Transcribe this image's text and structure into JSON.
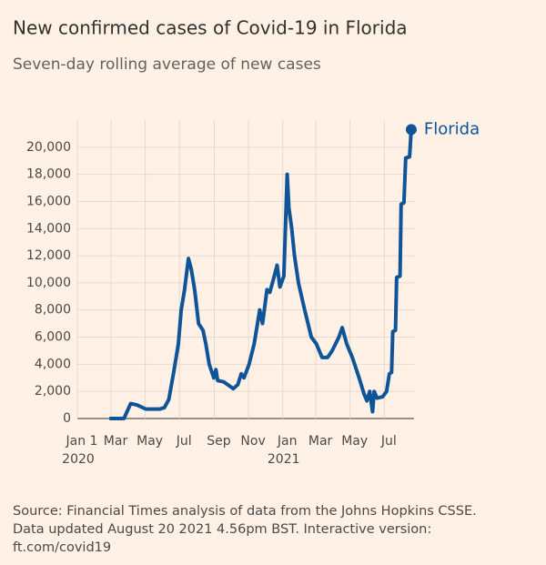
{
  "chart_data": {
    "type": "line",
    "title": "New confirmed cases of Covid-19 in Florida",
    "subtitle": "Seven-day rolling average of new cases",
    "source": [
      "Source: Financial Times analysis of data from the Johns Hopkins CSSE.",
      "Data updated August 20 2021 4.56pm BST. Interactive version:",
      "ft.com/covid19"
    ],
    "x": [
      57,
      83,
      95,
      106,
      122,
      147,
      155,
      163,
      172,
      180,
      185,
      191,
      198,
      203,
      209,
      216,
      224,
      229,
      235,
      243,
      247,
      250,
      261,
      278,
      286,
      292,
      297,
      306,
      315,
      325,
      330,
      338,
      343,
      351,
      356,
      361,
      368,
      374,
      377,
      382,
      387,
      394,
      405,
      417,
      426,
      436,
      446,
      454,
      466,
      472,
      480,
      490,
      502,
      511,
      516,
      521,
      526,
      529,
      534,
      544,
      551,
      556,
      560,
      562,
      567,
      569,
      575,
      577,
      582,
      585,
      592,
      595
    ],
    "series": [
      {
        "name": "Florida",
        "color": "#0f5499",
        "values": [
          0,
          0,
          1100,
          1000,
          700,
          700,
          800,
          1400,
          3500,
          5500,
          8000,
          9500,
          11800,
          11000,
          9500,
          7000,
          6500,
          5500,
          4000,
          3000,
          3600,
          2800,
          2700,
          2200,
          2500,
          3300,
          3000,
          4000,
          5500,
          8000,
          7000,
          9500,
          9300,
          10500,
          11300,
          9700,
          10500,
          18000,
          15500,
          14000,
          12000,
          10000,
          8000,
          6000,
          5500,
          4500,
          4500,
          5000,
          6000,
          6700,
          5500,
          4500,
          3000,
          1800,
          1300,
          2000,
          500,
          2000,
          1500,
          1600,
          2000,
          3300,
          3400,
          6400,
          6500,
          10400,
          10500,
          15800,
          15900,
          19200,
          19300,
          21300
        ]
      }
    ],
    "xlim": [
      0,
      600
    ],
    "xticks": [
      {
        "value": 0,
        "label": "Jan 1"
      },
      {
        "value": 60,
        "label": "Mar"
      },
      {
        "value": 121,
        "label": "May"
      },
      {
        "value": 182,
        "label": "Jul"
      },
      {
        "value": 244,
        "label": "Sep"
      },
      {
        "value": 305,
        "label": "Nov"
      },
      {
        "value": 366,
        "label": "Jan"
      },
      {
        "value": 425,
        "label": "Mar"
      },
      {
        "value": 486,
        "label": "May"
      },
      {
        "value": 547,
        "label": "Jul"
      }
    ],
    "year_labels": [
      {
        "value": 0,
        "label": "2020"
      },
      {
        "value": 366,
        "label": "2021"
      }
    ],
    "ylim": [
      0,
      22000
    ],
    "yticks": [
      0,
      {
        "value": 2000,
        "label": "2,000"
      },
      {
        "value": 4000,
        "label": "4,000"
      },
      {
        "value": 6000,
        "label": "6,000"
      },
      {
        "value": 8000,
        "label": "8,000"
      },
      {
        "value": 10000,
        "label": "10,000"
      },
      {
        "value": 12000,
        "label": "12,000"
      },
      {
        "value": 14000,
        "label": "14,000"
      },
      {
        "value": 16000,
        "label": "16,000"
      },
      {
        "value": 18000,
        "label": "18,000"
      },
      {
        "value": 20000,
        "label": "20,000"
      }
    ],
    "grid": true
  }
}
